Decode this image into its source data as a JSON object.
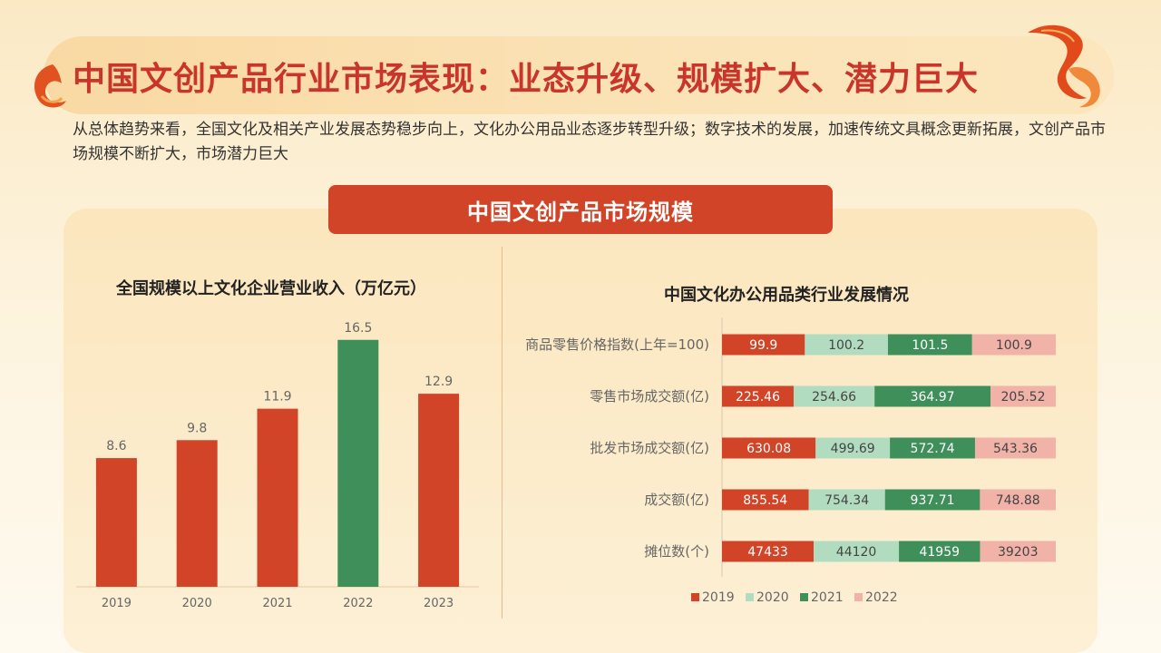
{
  "title": "中国文创产品行业市场表现：业态升级、规模扩大、潜力巨大",
  "subtitle": "从总体趋势来看，全国文化及相关产业发展态势稳步向上，文化办公用品业态逐步转型升级；数字技术的发展，加速传统文具概念更新拓展，文创产品市场规模不断扩大，市场潜力巨大",
  "panel_header": "中国文创产品市场规模",
  "colors": {
    "accent": "#d14427",
    "title": "#c9352a",
    "c2019": "#d14427",
    "c2020": "#b2dcc0",
    "c2021": "#3f8f5a",
    "c2022": "#f1b2a8"
  },
  "chart_data": [
    {
      "type": "bar",
      "title": "全国规模以上文化企业营业收入（万亿元）",
      "categories": [
        "2019",
        "2020",
        "2021",
        "2022",
        "2023"
      ],
      "values": [
        8.6,
        9.8,
        11.9,
        16.5,
        12.9
      ],
      "labels": [
        "8.6",
        "9.8",
        "11.9",
        "16.5",
        "12.9"
      ],
      "highlight_index": 3,
      "ylim": [
        0,
        18
      ],
      "grid": false,
      "legend": "none"
    },
    {
      "type": "bar",
      "orientation": "horizontal-stacked-100",
      "title": "中国文化办公用品类行业发展情况",
      "categories": [
        "商品零售价格指数(上年=100)",
        "零售市场成交额(亿)",
        "批发市场成交额(亿)",
        "成交额(亿)",
        "摊位数(个)"
      ],
      "series": [
        {
          "name": "2019",
          "values": [
            99.9,
            225.46,
            630.08,
            855.54,
            47433
          ],
          "labels": [
            "99.9",
            "225.46",
            "630.08",
            "855.54",
            "47433"
          ]
        },
        {
          "name": "2020",
          "values": [
            100.2,
            254.66,
            499.69,
            754.34,
            44120
          ],
          "labels": [
            "100.2",
            "254.66",
            "499.69",
            "754.34",
            "44120"
          ]
        },
        {
          "name": "2021",
          "values": [
            101.5,
            364.97,
            572.74,
            937.71,
            41959
          ],
          "labels": [
            "101.5",
            "364.97",
            "572.74",
            "937.71",
            "41959"
          ]
        },
        {
          "name": "2022",
          "values": [
            100.9,
            205.52,
            543.36,
            748.88,
            39203
          ],
          "labels": [
            "100.9",
            "205.52",
            "543.36",
            "748.88",
            "39203"
          ]
        }
      ],
      "grid": false,
      "legend": "bottom"
    }
  ]
}
